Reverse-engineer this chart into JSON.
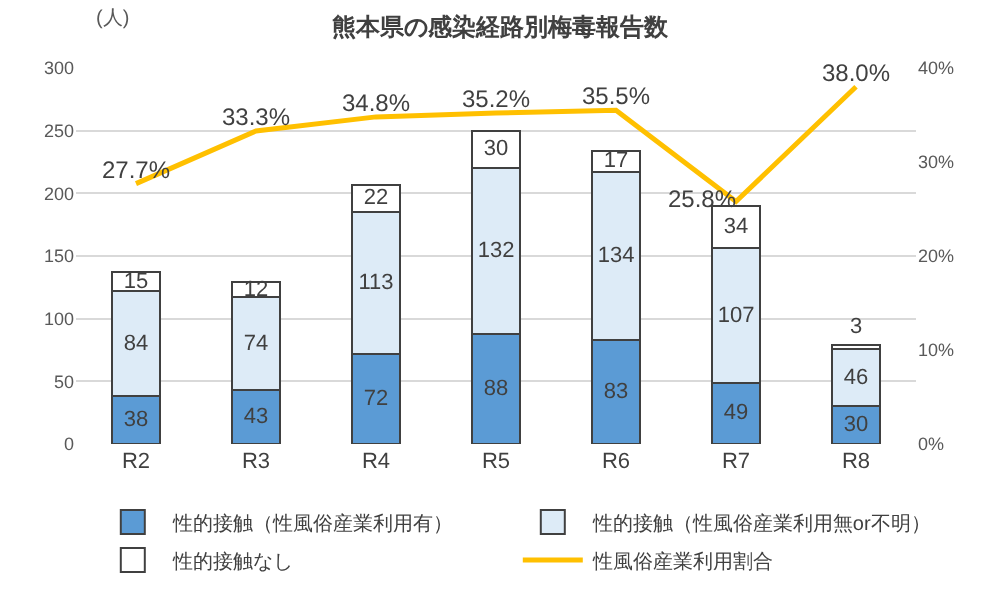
{
  "chart_data": {
    "type": "bar",
    "title": "熊本県の感染経路別梅毒報告数",
    "ylabel": "(人)",
    "categories": [
      "R2",
      "R3",
      "R4",
      "R5",
      "R6",
      "R7",
      "R8"
    ],
    "stacked": true,
    "series": [
      {
        "name": "性的接触（性風俗産業利用有）",
        "color": "#5b9bd5",
        "values": [
          38,
          43,
          72,
          88,
          83,
          49,
          30
        ]
      },
      {
        "name": "性的接触（性風俗産業利用無or不明）",
        "color": "#ddebf7",
        "values": [
          84,
          74,
          113,
          132,
          134,
          107,
          46
        ]
      },
      {
        "name": "性的接触なし",
        "color": "#ffffff",
        "values": [
          15,
          12,
          22,
          30,
          17,
          34,
          3
        ]
      },
      {
        "name": "性風俗産業利用割合",
        "type": "line",
        "axis": "y2",
        "color": "#ffc000",
        "marker": "none",
        "value_labels": [
          "27.7%",
          "33.3%",
          "34.8%",
          "35.2%",
          "35.5%",
          "25.8%",
          "38.0%"
        ],
        "values": [
          27.7,
          33.3,
          34.8,
          35.2,
          35.5,
          25.8,
          38.0
        ]
      }
    ],
    "data_labels": true,
    "ylim": [
      0,
      300
    ],
    "yticks": [
      0,
      50,
      100,
      150,
      200,
      250,
      300
    ],
    "y2lim": [
      0,
      40
    ],
    "y2ticks": [
      {
        "value": 0,
        "label": "0%"
      },
      {
        "value": 10,
        "label": "10%"
      },
      {
        "value": 20,
        "label": "20%"
      },
      {
        "value": 30,
        "label": "30%"
      },
      {
        "value": 40,
        "label": "40%"
      }
    ],
    "grid": "y",
    "legend": "bottom"
  }
}
